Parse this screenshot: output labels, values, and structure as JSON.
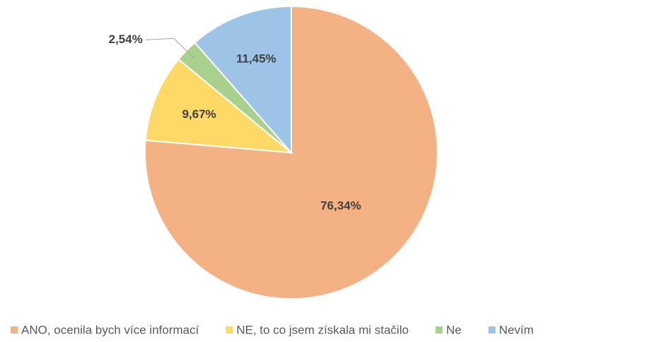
{
  "chart_data": {
    "type": "pie",
    "categories": [
      "ANO, ocenila bych více informací",
      "NE, to co jsem získala mi stačilo",
      "Ne",
      "Nevím"
    ],
    "values": [
      76.34,
      9.67,
      2.54,
      11.45
    ],
    "value_labels": [
      "76,34%",
      "9,67%",
      "2,54%",
      "11,45%"
    ],
    "colors": [
      "#F4B183",
      "#FFD966",
      "#A9D18E",
      "#9DC3E6"
    ]
  }
}
